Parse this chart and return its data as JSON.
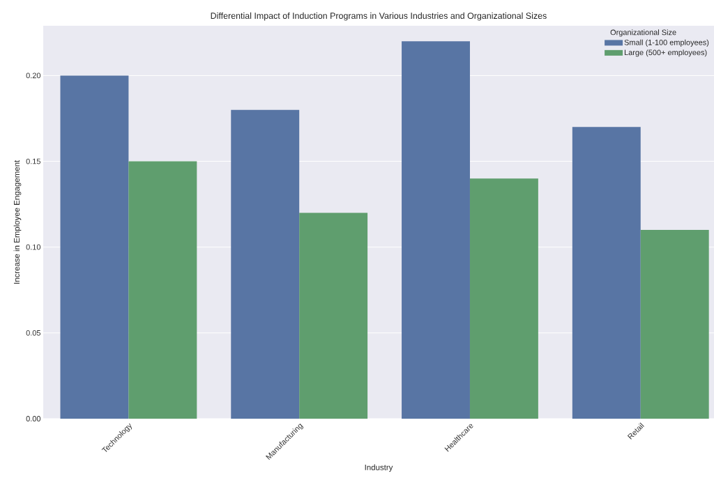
{
  "chart_data": {
    "type": "bar",
    "title": "Differential Impact of Induction Programs in Various Industries and Organizational Sizes",
    "xlabel": "Industry",
    "ylabel": "Increase in Employee Engagement",
    "legend_title": "Organizational Size",
    "categories": [
      "Technology",
      "Manufacturing",
      "Healthcare",
      "Retail"
    ],
    "series": [
      {
        "name": "Small (1-100 employees)",
        "color": "#5875a4",
        "values": [
          0.2,
          0.18,
          0.22,
          0.17
        ]
      },
      {
        "name": "Large (500+ employees)",
        "color": "#5f9e6e",
        "values": [
          0.15,
          0.12,
          0.14,
          0.11
        ]
      }
    ],
    "ylim": [
      0,
      0.229
    ],
    "yticks": [
      {
        "value": 0,
        "label": "0.00"
      },
      {
        "value": 0.05,
        "label": "0.05"
      },
      {
        "value": 0.1,
        "label": "0.10"
      },
      {
        "value": 0.15,
        "label": "0.15"
      },
      {
        "value": 0.2,
        "label": "0.20"
      }
    ],
    "grid": "y",
    "legend": "top right"
  }
}
